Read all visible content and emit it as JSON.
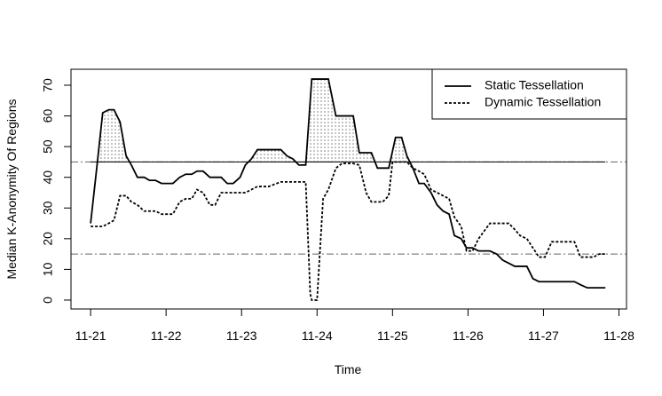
{
  "chart_data": {
    "type": "line",
    "x_label": "Time",
    "y_label": "Median K-Anonymity Of Regions",
    "xlim": [
      -0.26,
      7.1
    ],
    "ylim": [
      -2.9,
      75.2
    ],
    "xticks": [
      {
        "value": 0,
        "label": "11-21"
      },
      {
        "value": 1,
        "label": "11-22"
      },
      {
        "value": 2,
        "label": "11-23"
      },
      {
        "value": 3,
        "label": "11-24"
      },
      {
        "value": 4,
        "label": "11-25"
      },
      {
        "value": 5,
        "label": "11-26"
      },
      {
        "value": 6,
        "label": "11-27"
      },
      {
        "value": 7,
        "label": "11-28"
      }
    ],
    "yticks": [
      0,
      10,
      20,
      30,
      40,
      50,
      60,
      70
    ],
    "reference_lines": [
      45,
      15
    ],
    "shade_above": 45,
    "legend": "topright",
    "series": [
      {
        "name": "Static Tessellation",
        "color": "#000000",
        "dash": "solid",
        "x": [
          0,
          0.09,
          0.16,
          0.24,
          0.31,
          0.39,
          0.47,
          0.54,
          0.62,
          0.71,
          0.78,
          0.86,
          0.94,
          1.09,
          1.18,
          1.26,
          1.34,
          1.41,
          1.49,
          1.58,
          1.73,
          1.81,
          1.89,
          1.98,
          2.05,
          2.13,
          2.21,
          2.36,
          2.52,
          2.6,
          2.68,
          2.76,
          2.85,
          2.93,
          3.15,
          3.25,
          3.48,
          3.56,
          3.72,
          3.8,
          3.95,
          4.04,
          4.12,
          4.19,
          4.27,
          4.35,
          4.42,
          4.51,
          4.59,
          4.67,
          4.75,
          4.82,
          4.91,
          4.98,
          5.06,
          5.14,
          5.29,
          5.38,
          5.46,
          5.54,
          5.62,
          5.78,
          5.86,
          5.94,
          6.41,
          6.49,
          6.58,
          6.82
        ],
        "values": [
          25,
          45,
          61,
          62,
          62,
          58,
          47,
          44,
          40,
          40,
          39,
          39,
          38,
          38,
          40,
          41,
          41,
          42,
          42,
          40,
          40,
          38,
          38,
          40,
          44,
          46,
          49,
          49,
          49,
          47,
          46,
          44,
          44,
          72,
          72,
          60,
          60,
          48,
          48,
          43,
          43,
          53,
          53,
          47,
          43,
          38,
          38,
          35,
          31,
          29,
          28,
          21,
          20,
          17,
          17,
          16,
          16,
          15,
          13,
          12,
          11,
          11,
          7,
          6,
          6,
          5,
          4,
          4
        ]
      },
      {
        "name": "Dynamic Tessellation",
        "color": "#000000",
        "dash": "dotted",
        "x": [
          0,
          0.16,
          0.24,
          0.31,
          0.39,
          0.47,
          0.54,
          0.62,
          0.71,
          0.86,
          0.94,
          1.09,
          1.18,
          1.26,
          1.34,
          1.41,
          1.49,
          1.58,
          1.65,
          1.73,
          2.05,
          2.13,
          2.21,
          2.36,
          2.52,
          2.85,
          2.91,
          2.93,
          3.0,
          3.08,
          3.15,
          3.25,
          3.33,
          3.48,
          3.56,
          3.65,
          3.72,
          3.87,
          3.95,
          4.0,
          4.19,
          4.27,
          4.35,
          4.42,
          4.51,
          4.67,
          4.75,
          4.82,
          4.91,
          4.98,
          5.06,
          5.14,
          5.29,
          5.54,
          5.62,
          5.69,
          5.78,
          5.86,
          5.94,
          6.02,
          6.11,
          6.41,
          6.49,
          6.66,
          6.74,
          6.82
        ],
        "values": [
          24,
          24,
          25,
          26,
          34,
          34,
          32,
          31,
          29,
          29,
          28,
          28,
          32,
          33,
          33,
          36,
          35,
          31,
          31,
          35,
          35,
          36,
          37,
          37,
          38.5,
          38.5,
          2,
          0,
          0,
          33,
          36,
          43,
          44.5,
          44.5,
          44,
          35,
          32,
          32,
          34,
          45,
          45,
          43,
          42,
          41,
          36,
          34,
          33,
          27,
          24,
          16,
          16,
          20,
          25,
          25,
          23,
          21,
          20,
          17,
          14,
          14,
          19,
          19,
          14,
          14,
          15,
          15
        ]
      }
    ]
  }
}
